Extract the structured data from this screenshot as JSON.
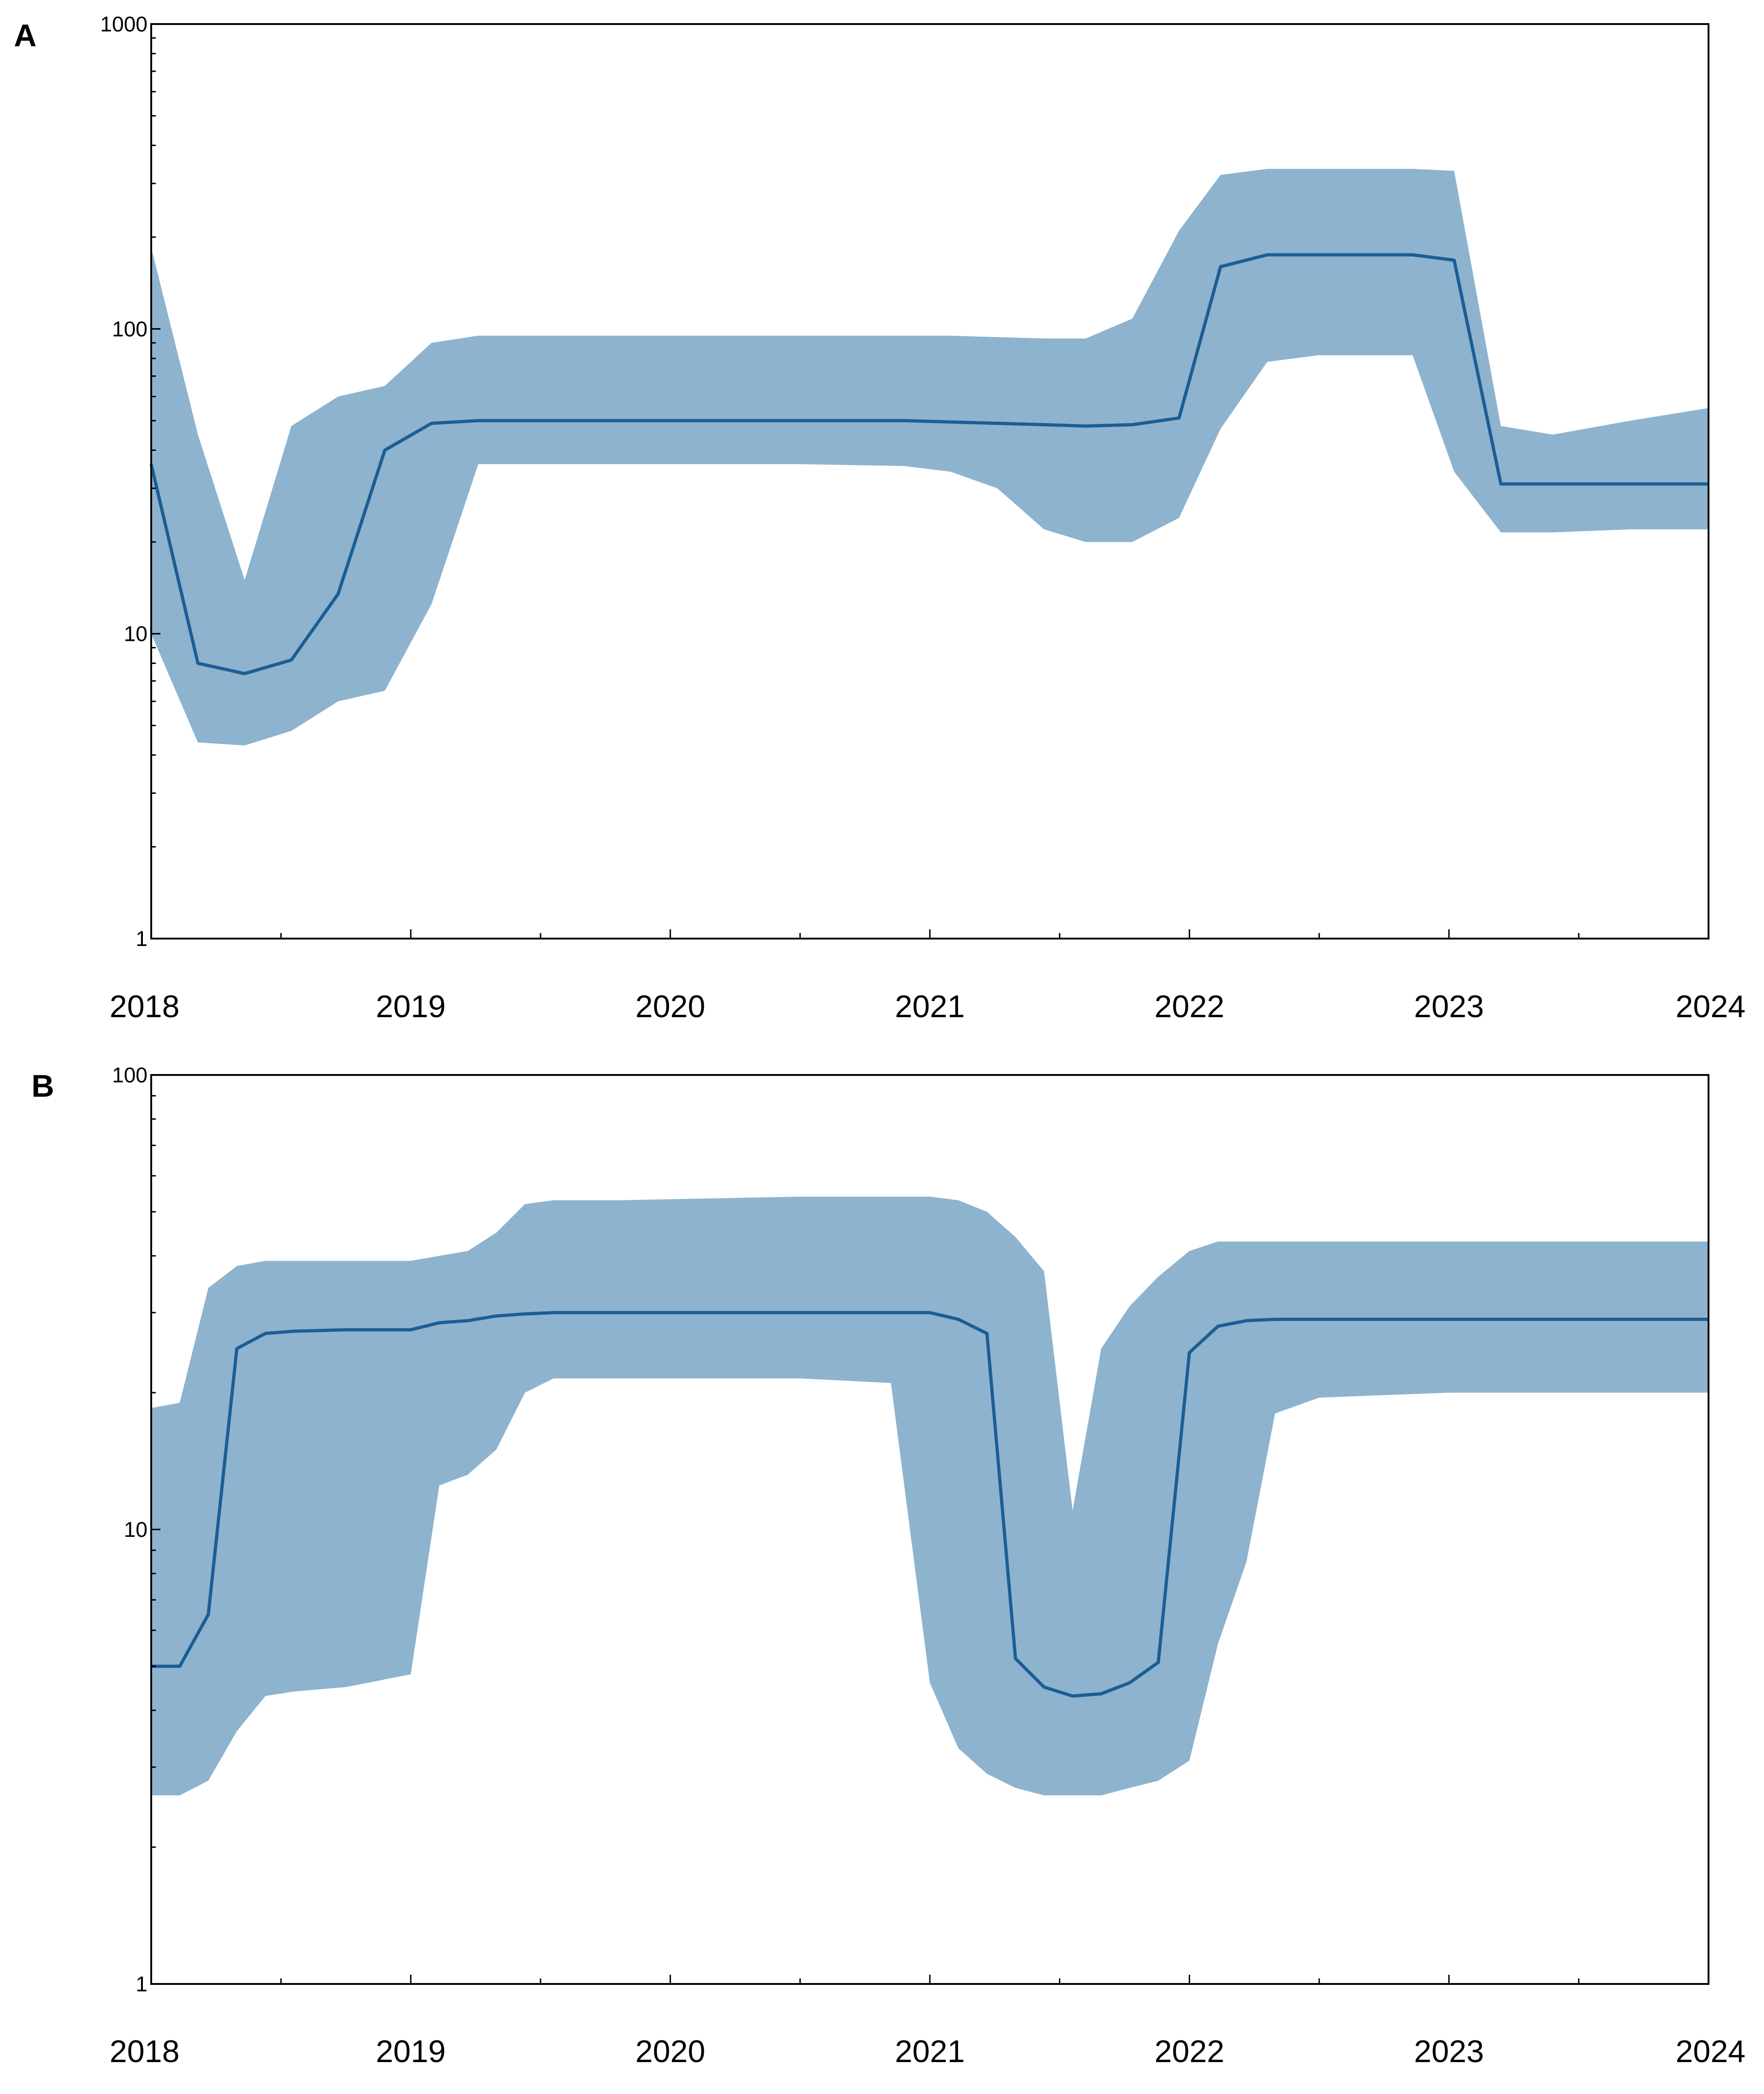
{
  "chart_data": [
    {
      "panel": "A",
      "type": "area",
      "yscale": "log",
      "ylim": [
        1,
        1000
      ],
      "xlim": [
        2018,
        2024
      ],
      "y_ticks": [
        1,
        10,
        100,
        1000
      ],
      "x_ticks": [
        2018,
        2019,
        2020,
        2021,
        2022,
        2023,
        2024
      ],
      "colors": {
        "band": "#8db3cf",
        "line": "#1b5e94"
      },
      "x": [
        2018.0,
        2018.18,
        2018.36,
        2018.54,
        2018.72,
        2018.9,
        2019.08,
        2019.26,
        2019.6,
        2020.0,
        2020.5,
        2020.9,
        2021.08,
        2021.26,
        2021.44,
        2021.6,
        2021.78,
        2021.96,
        2022.12,
        2022.3,
        2022.5,
        2022.7,
        2022.86,
        2023.02,
        2023.2,
        2023.4,
        2023.7,
        2024.0
      ],
      "lower": [
        10,
        4.4,
        4.3,
        4.8,
        6.0,
        6.5,
        12.5,
        36,
        36,
        36,
        36,
        35.5,
        34,
        30,
        22,
        20,
        20,
        24,
        47,
        78,
        82,
        82,
        82,
        34,
        21.5,
        21.5,
        22,
        22
      ],
      "median": [
        36,
        8.0,
        7.4,
        8.2,
        13.5,
        40,
        49,
        50,
        50,
        50,
        50,
        50,
        49.5,
        49,
        48.5,
        48,
        48.5,
        51,
        160,
        175,
        175,
        175,
        175,
        168,
        31,
        31,
        31,
        31
      ],
      "upper": [
        185,
        45,
        15,
        48,
        60,
        65,
        90,
        95,
        95,
        95,
        95,
        95,
        95,
        94,
        93,
        93,
        108,
        210,
        320,
        335,
        335,
        335,
        335,
        330,
        48,
        45,
        50,
        55
      ]
    },
    {
      "panel": "B",
      "type": "area",
      "yscale": "log",
      "ylim": [
        1,
        100
      ],
      "xlim": [
        2018,
        2024
      ],
      "y_ticks": [
        1,
        10,
        100
      ],
      "x_ticks": [
        2018,
        2019,
        2020,
        2021,
        2022,
        2023,
        2024
      ],
      "colors": {
        "band": "#8db3cf",
        "line": "#1b5e94"
      },
      "x": [
        2018.0,
        2018.11,
        2018.22,
        2018.33,
        2018.44,
        2018.55,
        2018.75,
        2019.0,
        2019.11,
        2019.22,
        2019.33,
        2019.44,
        2019.55,
        2019.8,
        2020.5,
        2020.85,
        2021.0,
        2021.11,
        2021.22,
        2021.33,
        2021.44,
        2021.55,
        2021.66,
        2021.77,
        2021.88,
        2022.0,
        2022.11,
        2022.22,
        2022.33,
        2022.5,
        2023.0,
        2024.0
      ],
      "lower": [
        2.6,
        2.6,
        2.8,
        3.6,
        4.3,
        4.4,
        4.5,
        4.8,
        12.5,
        13.2,
        15,
        20,
        21.5,
        21.5,
        21.5,
        21,
        4.6,
        3.3,
        2.9,
        2.7,
        2.6,
        2.6,
        2.6,
        2.7,
        2.8,
        3.1,
        5.6,
        8.5,
        18,
        19.5,
        20,
        20
      ],
      "median": [
        5.0,
        5.0,
        6.5,
        25,
        27,
        27.3,
        27.5,
        27.5,
        28.5,
        28.8,
        29.5,
        29.8,
        30,
        30,
        30,
        30,
        30,
        29,
        27,
        5.2,
        4.5,
        4.3,
        4.35,
        4.6,
        5.1,
        24.5,
        28,
        28.8,
        29,
        29,
        29,
        29
      ],
      "upper": [
        18.5,
        19,
        34,
        38,
        39,
        39,
        39,
        39,
        40,
        41,
        45,
        52,
        53,
        53,
        54,
        54,
        54,
        53,
        50,
        44,
        37,
        11,
        25,
        31,
        36,
        41,
        43,
        43,
        43,
        43,
        43,
        43
      ]
    }
  ]
}
